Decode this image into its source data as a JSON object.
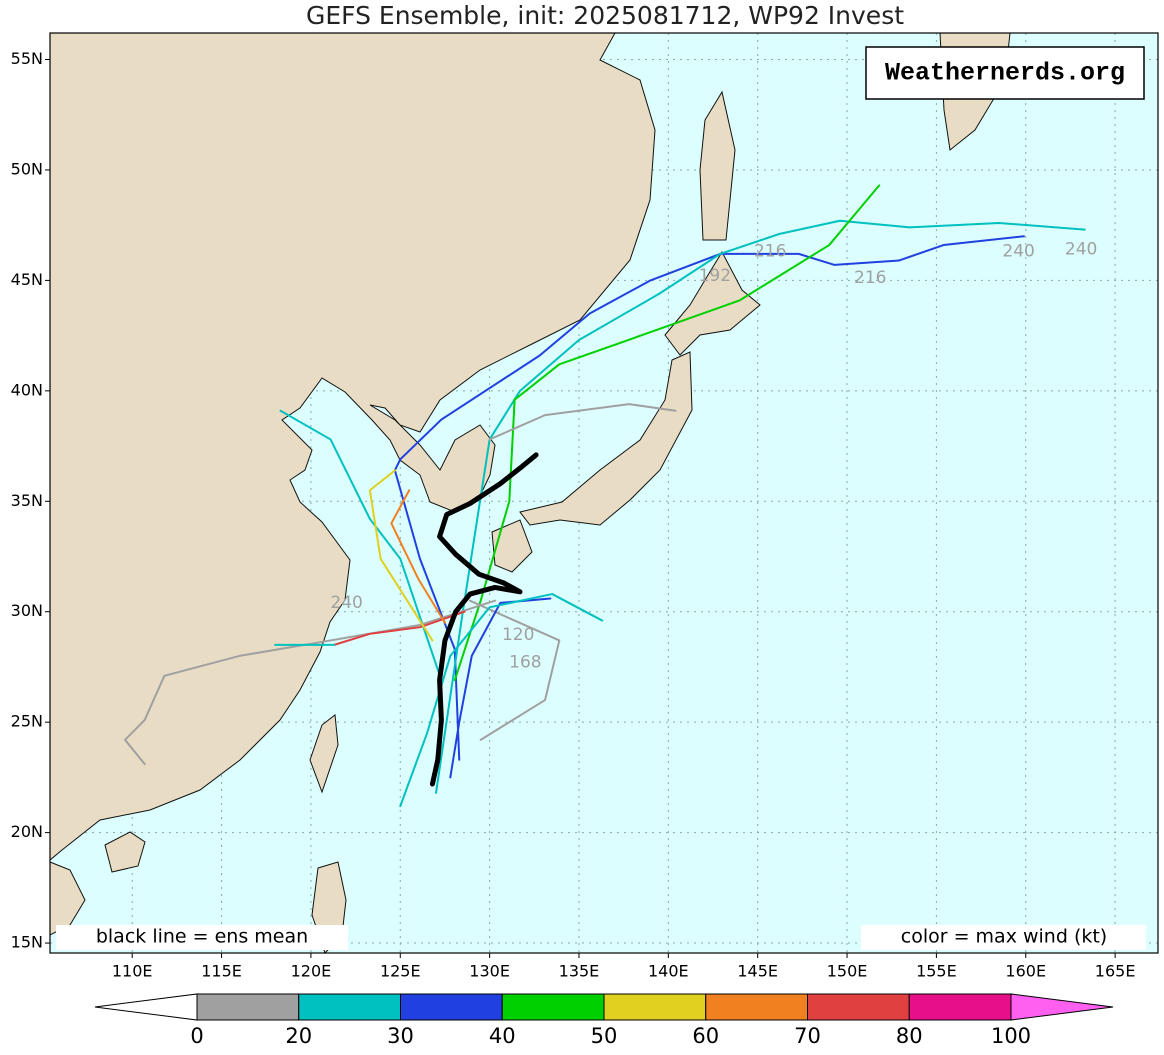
{
  "chart_data": {
    "type": "track-map",
    "title": "GEFS Ensemble, init: 2025081712, WP92 Invest",
    "watermark": "Weathernerds.org",
    "note_left": "black line = ens mean",
    "note_right": "color = max wind (kt)",
    "xlim": [
      105.4,
      167.4
    ],
    "ylim": [
      14.55,
      56.2
    ],
    "xticks": [
      {
        "value": 110,
        "label": "110E"
      },
      {
        "value": 115,
        "label": "115E"
      },
      {
        "value": 120,
        "label": "120E"
      },
      {
        "value": 125,
        "label": "125E"
      },
      {
        "value": 130,
        "label": "130E"
      },
      {
        "value": 135,
        "label": "135E"
      },
      {
        "value": 140,
        "label": "140E"
      },
      {
        "value": 145,
        "label": "145E"
      },
      {
        "value": 150,
        "label": "150E"
      },
      {
        "value": 155,
        "label": "155E"
      },
      {
        "value": 160,
        "label": "160E"
      },
      {
        "value": 165,
        "label": "165E"
      }
    ],
    "yticks": [
      {
        "value": 15,
        "label": "15N"
      },
      {
        "value": 20,
        "label": "20N"
      },
      {
        "value": 25,
        "label": "25N"
      },
      {
        "value": 30,
        "label": "30N"
      },
      {
        "value": 35,
        "label": "35N"
      },
      {
        "value": 40,
        "label": "40N"
      },
      {
        "value": 45,
        "label": "45N"
      },
      {
        "value": 50,
        "label": "50N"
      },
      {
        "value": 55,
        "label": "55N"
      }
    ],
    "grid": true,
    "mean_track": {
      "color": "#000000",
      "lon": [
        126.8,
        127.1,
        127.3,
        127.2,
        127.5,
        128.1,
        128.9,
        130.3,
        131.7,
        130.8,
        129.4,
        128.1,
        127.2,
        127.6,
        128.9,
        130.6,
        131.7,
        132.6
      ],
      "lat": [
        22.2,
        23.3,
        25.1,
        26.9,
        28.7,
        30.0,
        30.8,
        31.1,
        30.9,
        31.3,
        31.7,
        32.6,
        33.4,
        34.4,
        34.9,
        35.8,
        36.5,
        37.1
      ]
    },
    "series": [
      {
        "color": "#2040e0",
        "lon": [
          128.3,
          128.05,
          126.1,
          124.7,
          125.0,
          127.3,
          132.8,
          135.6,
          139.0,
          142.9,
          147.3,
          149.3,
          152.9,
          155.4,
          159.9
        ],
        "lat": [
          23.3,
          28.3,
          32.4,
          36.4,
          36.9,
          38.7,
          41.6,
          43.5,
          45.0,
          46.2,
          46.2,
          45.7,
          45.9,
          46.6,
          47.0
        ]
      },
      {
        "color": "#00c0c0",
        "lon": [
          127.0,
          128.5,
          130.0,
          131.7,
          135.0,
          139.5,
          142.9,
          146.2,
          149.6,
          153.5,
          158.5,
          163.3
        ],
        "lat": [
          21.8,
          30.0,
          37.8,
          40.0,
          42.3,
          44.4,
          46.2,
          47.1,
          47.7,
          47.4,
          47.6,
          47.3
        ]
      },
      {
        "color": "#00d000",
        "lon": [
          128.05,
          129.5,
          131.1,
          131.4,
          133.9,
          139.5,
          144.0,
          146.8,
          149.0,
          151.8
        ],
        "lat": [
          26.9,
          30.5,
          35.0,
          39.6,
          41.2,
          42.8,
          44.1,
          45.5,
          46.6,
          49.3
        ]
      },
      {
        "color": "#a0a0a0",
        "lon": [
          130.3,
          126.1,
          121.1,
          116.0,
          111.8,
          110.7,
          109.6,
          110.7
        ],
        "lat": [
          30.5,
          29.4,
          28.7,
          28.0,
          27.1,
          25.1,
          24.2,
          23.1
        ]
      },
      {
        "color": "#e04040",
        "lon": [
          128.6,
          126.1,
          123.3,
          121.3
        ],
        "lat": [
          30.0,
          29.3,
          29.0,
          28.5
        ]
      },
      {
        "color": "#00c0c0",
        "lon": [
          121.3,
          118.0
        ],
        "lat": [
          28.5,
          28.5
        ]
      },
      {
        "color": "#a0a0a0",
        "lon": [
          130.0,
          133.1,
          137.8,
          140.4
        ],
        "lat": [
          37.8,
          38.9,
          39.4,
          39.1
        ]
      },
      {
        "color": "#00c0c0",
        "lon": [
          127.3,
          125.0,
          123.3,
          121.1,
          118.3
        ],
        "lat": [
          26.9,
          32.4,
          34.2,
          37.8,
          39.1
        ]
      },
      {
        "color": "#e0d020",
        "lon": [
          126.8,
          123.9,
          123.3,
          124.7
        ],
        "lat": [
          28.7,
          32.4,
          35.5,
          36.4
        ]
      },
      {
        "color": "#a0a0a0",
        "lon": [
          128.9,
          133.9,
          133.1,
          129.5
        ],
        "lat": [
          30.5,
          28.7,
          26.0,
          24.2
        ]
      },
      {
        "color": "#2040e0",
        "lon": [
          127.8,
          128.3,
          129.0,
          130.6,
          133.4
        ],
        "lat": [
          22.5,
          25.0,
          28.0,
          30.4,
          30.6
        ]
      },
      {
        "color": "#00c0c0",
        "lon": [
          125.0,
          126.5,
          127.8,
          130.0,
          133.5,
          136.3
        ],
        "lat": [
          21.2,
          24.5,
          28.0,
          30.2,
          30.8,
          29.6
        ]
      },
      {
        "color": "#f08020",
        "lon": [
          127.5,
          126.0,
          124.5,
          125.5
        ],
        "lat": [
          29.5,
          31.5,
          34.0,
          35.5
        ]
      }
    ],
    "hour_labels": [
      {
        "text": 240,
        "lon": 159.6,
        "lat": 46.3
      },
      {
        "text": 240,
        "lon": 163.1,
        "lat": 46.4
      },
      {
        "text": 216,
        "lon": 151.3,
        "lat": 45.1
      },
      {
        "text": 216,
        "lon": 145.7,
        "lat": 46.3
      },
      {
        "text": 192,
        "lon": 142.6,
        "lat": 45.2
      },
      {
        "text": 168,
        "lon": 132.0,
        "lat": 27.7
      },
      {
        "text": 120,
        "lon": 131.6,
        "lat": 28.95
      },
      {
        "text": 240,
        "lon": 122.0,
        "lat": 30.4
      }
    ],
    "colorbar": {
      "ticks": [
        0,
        20,
        30,
        40,
        50,
        60,
        70,
        80,
        100
      ],
      "colors": [
        "#a0a0a0",
        "#00c0c0",
        "#2040e0",
        "#00d000",
        "#e0d020",
        "#f08020",
        "#e04040",
        "#e8108a"
      ],
      "under_color": "#ffffff",
      "over_color": "#ff60f0"
    }
  }
}
